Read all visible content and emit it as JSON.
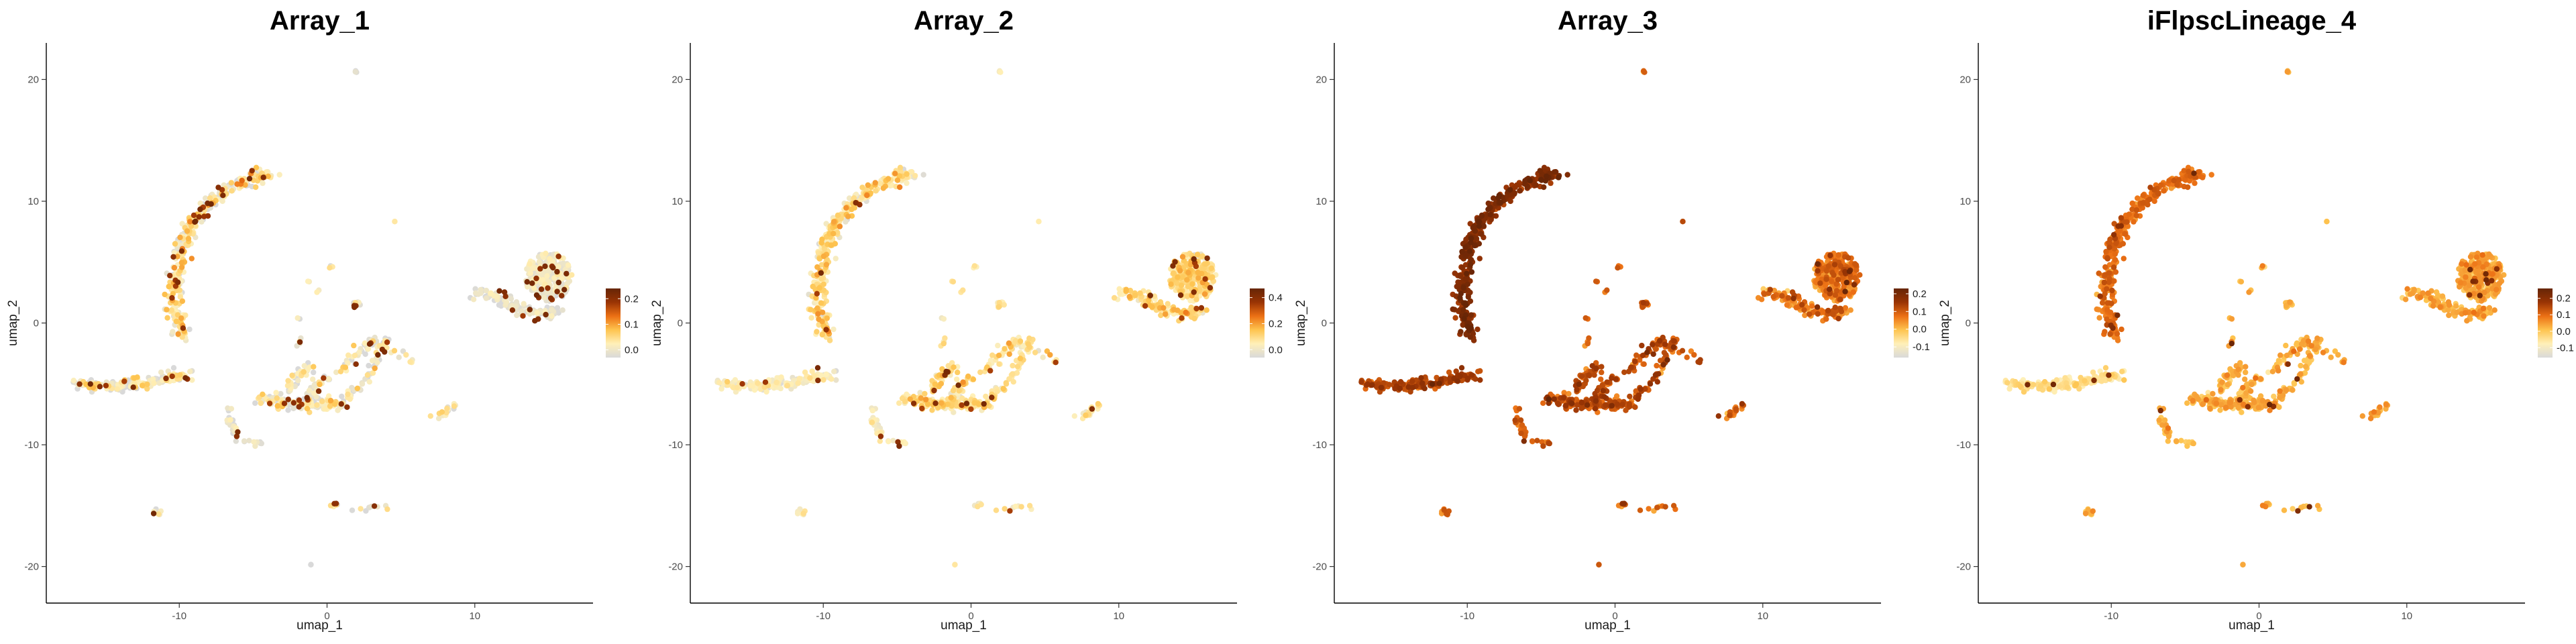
{
  "chart_data": [
    {
      "type": "scatter",
      "title": "Array_1",
      "xlabel": "umap_1",
      "ylabel": "umap_2",
      "xlim": [
        -19,
        18
      ],
      "ylim": [
        -23,
        23
      ],
      "xticks": [
        -10,
        0,
        10
      ],
      "yticks": [
        -20,
        -10,
        0,
        10,
        20
      ],
      "color_range": [
        -0.03,
        0.24
      ],
      "legend_ticks": [
        0.0,
        0.1,
        0.2
      ],
      "legend_labels": [
        "0.0",
        "0.1",
        "0.2"
      ],
      "colors": [
        "#d9d9d9",
        "#fff0b8",
        "#fec44f",
        "#ec7014",
        "#993404",
        "#662506"
      ],
      "grid": false,
      "legend_position": "right"
    },
    {
      "type": "scatter",
      "title": "Array_2",
      "xlabel": "umap_1",
      "ylabel": "umap_2",
      "xlim": [
        -19,
        18
      ],
      "ylim": [
        -23,
        23
      ],
      "xticks": [
        -10,
        0,
        10
      ],
      "yticks": [
        -20,
        -10,
        0,
        10,
        20
      ],
      "color_range": [
        -0.06,
        0.47
      ],
      "legend_ticks": [
        0.0,
        0.2,
        0.4
      ],
      "legend_labels": [
        "0.0",
        "0.2",
        "0.4"
      ],
      "colors": [
        "#d9d9d9",
        "#fff0b8",
        "#fec44f",
        "#ec7014",
        "#993404",
        "#662506"
      ],
      "grid": false,
      "legend_position": "right"
    },
    {
      "type": "scatter",
      "title": "Array_3",
      "xlabel": "umap_1",
      "ylabel": "umap_2",
      "xlim": [
        -19,
        18
      ],
      "ylim": [
        -23,
        23
      ],
      "xticks": [
        -10,
        0,
        10
      ],
      "yticks": [
        -20,
        -10,
        0,
        10,
        20
      ],
      "color_range": [
        -0.16,
        0.23
      ],
      "legend_ticks": [
        -0.1,
        0.0,
        0.1,
        0.2
      ],
      "legend_labels": [
        "-0.1",
        "0.0",
        "0.1",
        "0.2"
      ],
      "colors": [
        "#d9d9d9",
        "#fff0b8",
        "#fec44f",
        "#ec7014",
        "#993404",
        "#662506"
      ],
      "grid": false,
      "legend_position": "right"
    },
    {
      "type": "scatter",
      "title": "iFlpscLineage_4",
      "xlabel": "umap_1",
      "ylabel": "umap_2",
      "xlim": [
        -19,
        18
      ],
      "ylim": [
        -23,
        23
      ],
      "xticks": [
        -10,
        0,
        10
      ],
      "yticks": [
        -20,
        -10,
        0,
        10,
        20
      ],
      "color_range": [
        -0.16,
        0.26
      ],
      "legend_ticks": [
        -0.1,
        0.0,
        0.1,
        0.2
      ],
      "legend_labels": [
        "-0.1",
        "0.0",
        "0.1",
        "0.2"
      ],
      "colors": [
        "#d9d9d9",
        "#fff0b8",
        "#fec44f",
        "#ec7014",
        "#993404",
        "#662506"
      ],
      "grid": false,
      "legend_position": "right"
    }
  ]
}
